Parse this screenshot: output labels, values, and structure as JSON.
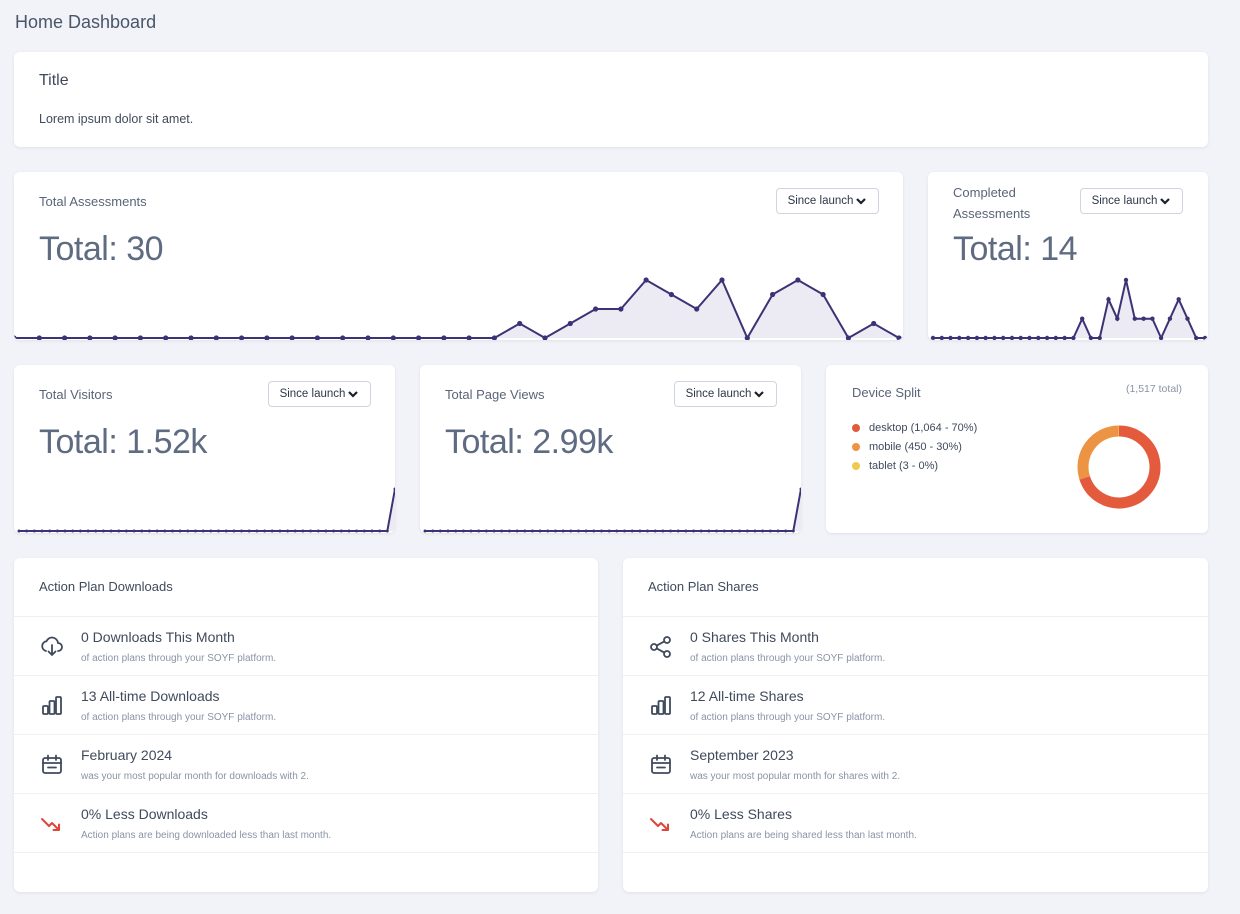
{
  "page": {
    "title": "Home Dashboard"
  },
  "intro": {
    "title": "Title",
    "text": "Lorem ipsum dolor sit amet."
  },
  "total_assessments": {
    "label": "Total Assessments",
    "value": "Total: 30",
    "range": "Since launch",
    "chart_data": {
      "type": "area",
      "values": [
        0,
        0,
        0,
        0,
        0,
        0,
        0,
        0,
        0,
        0,
        0,
        0,
        0,
        0,
        0,
        0,
        0,
        0,
        0,
        0,
        1,
        0,
        1,
        2,
        2,
        4,
        3,
        2,
        4,
        0,
        3,
        4,
        3,
        0,
        1,
        0
      ]
    }
  },
  "completed_assessments": {
    "label": "Completed Assessments",
    "value": "Total: 14",
    "range": "Since launch",
    "chart_data": {
      "type": "area",
      "values": [
        0,
        0,
        0,
        0,
        0,
        0,
        0,
        0,
        0,
        0,
        0,
        0,
        0,
        0,
        0,
        0,
        0,
        1,
        0,
        0,
        2,
        1,
        3,
        1,
        1,
        1,
        0,
        1,
        2,
        1,
        0,
        0
      ]
    }
  },
  "total_visitors": {
    "label": "Total Visitors",
    "value": "Total: 1.52k",
    "range": "Since launch",
    "chart_data": {
      "type": "area",
      "values": [
        0,
        0,
        0,
        0,
        0,
        0,
        0,
        0,
        0,
        0,
        0,
        0,
        0,
        0,
        0,
        0,
        0,
        0,
        0,
        0,
        0,
        0,
        0,
        0,
        0,
        0,
        0,
        0,
        0,
        0,
        0,
        0,
        0,
        0,
        0,
        0,
        0,
        0,
        0,
        0,
        0,
        0,
        0,
        0,
        0,
        0,
        0,
        0,
        0,
        1517
      ]
    }
  },
  "total_page_views": {
    "label": "Total Page Views",
    "value": "Total: 2.99k",
    "range": "Since launch",
    "chart_data": {
      "type": "area",
      "values": [
        0,
        0,
        0,
        0,
        0,
        0,
        0,
        0,
        0,
        0,
        0,
        0,
        0,
        0,
        0,
        0,
        0,
        0,
        0,
        0,
        0,
        0,
        0,
        0,
        0,
        0,
        0,
        0,
        0,
        0,
        0,
        0,
        0,
        0,
        0,
        0,
        0,
        0,
        0,
        0,
        0,
        0,
        0,
        0,
        0,
        0,
        0,
        0,
        0,
        2990
      ]
    }
  },
  "device_split": {
    "label": "Device Split",
    "total": "(1,517 total)",
    "legend": [
      {
        "label": "desktop (1,064 - 70%)",
        "color": "#e35a3d"
      },
      {
        "label": "mobile (450 - 30%)",
        "color": "#ec9444"
      },
      {
        "label": "tablet (3 - 0%)",
        "color": "#f2c94c"
      }
    ],
    "chart_data": {
      "type": "pie",
      "categories": [
        "desktop",
        "mobile",
        "tablet"
      ],
      "values": [
        1064,
        450,
        3
      ]
    }
  },
  "downloads": {
    "title": "Action Plan Downloads",
    "rows": [
      {
        "icon": "download-cloud-icon",
        "head": "0 Downloads This Month",
        "sub": "of action plans through your SOYF platform."
      },
      {
        "icon": "bar-chart-icon",
        "head": "13 All-time Downloads",
        "sub": "of action plans through your SOYF platform."
      },
      {
        "icon": "calendar-icon",
        "head": "February 2024",
        "sub": "was your most popular month for downloads with 2."
      },
      {
        "icon": "trend-down-icon",
        "head": "0% Less Downloads",
        "sub": "Action plans are being downloaded less than last month."
      }
    ]
  },
  "shares": {
    "title": "Action Plan Shares",
    "rows": [
      {
        "icon": "share-icon",
        "head": "0 Shares This Month",
        "sub": "of action plans through your SOYF platform."
      },
      {
        "icon": "bar-chart-icon",
        "head": "12 All-time Shares",
        "sub": "of action plans through your SOYF platform."
      },
      {
        "icon": "calendar-icon",
        "head": "September 2023",
        "sub": "was your most popular month for shares with 2."
      },
      {
        "icon": "trend-down-icon",
        "head": "0% Less Shares",
        "sub": "Action plans are being shared less than last month."
      }
    ]
  },
  "colors": {
    "line": "#3d3275",
    "fill": "#ecebf3",
    "trend_down": "#e0453a",
    "icon": "#3f4a5c"
  }
}
